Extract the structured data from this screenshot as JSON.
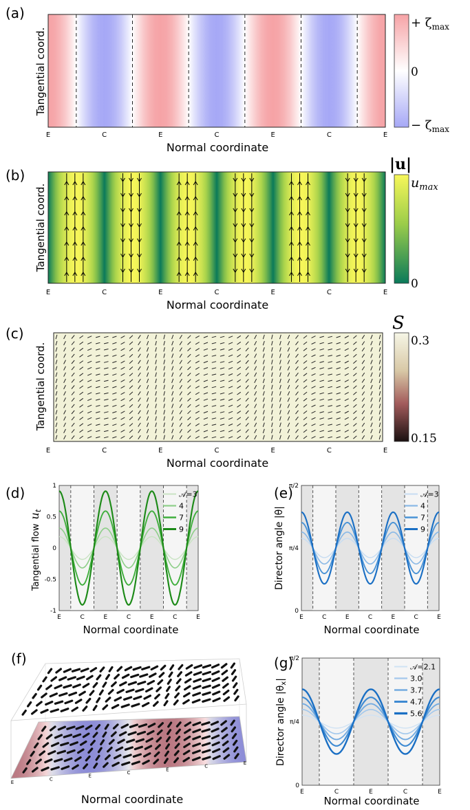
{
  "panels": {
    "a": {
      "label": "(a)",
      "ylabel": "Tangential coord.",
      "xlabel": "Normal coordinate",
      "ticks": [
        "E",
        "C",
        "E",
        "C",
        "E",
        "C",
        "E"
      ],
      "colorbar": {
        "top": "+ ζ",
        "top_sub": "max",
        "mid": "0",
        "bottom": "− ζ",
        "bottom_sub": "max"
      }
    },
    "b": {
      "label": "(b)",
      "ylabel": "Tangential coord.",
      "xlabel": "Normal coordinate",
      "ticks": [
        "E",
        "C",
        "E",
        "C",
        "E",
        "C",
        "E"
      ],
      "colorbar": {
        "title": "|u|",
        "top": "u",
        "top_sub": "max",
        "bottom": "0"
      }
    },
    "c": {
      "label": "(c)",
      "ylabel": "Tangential coord.",
      "xlabel": "Normal coordinate",
      "ticks": [
        "E",
        "C",
        "E",
        "C",
        "E",
        "C",
        "E"
      ],
      "colorbar": {
        "title": "S",
        "top": "0.3",
        "bottom": "0.15"
      }
    },
    "d": {
      "label": "(d)",
      "ylabel": "Tangential flow",
      "ylabel_sym": "u",
      "ylabel_sub": "t",
      "xlabel": "Normal coordinate",
      "xticks": [
        "E",
        "C",
        "E",
        "C",
        "E",
        "C",
        "E"
      ],
      "yticks": [
        "1",
        "0.5",
        "0",
        "-0.5",
        "-1"
      ],
      "legend_title": "𝒜=3",
      "legend": [
        "4",
        "7",
        "9"
      ]
    },
    "e": {
      "label": "(e)",
      "ylabel": "Director angle |θ|",
      "xlabel": "Normal coordinate",
      "xticks": [
        "E",
        "C",
        "E",
        "C",
        "E",
        "C",
        "E"
      ],
      "yticks": [
        "π/2",
        "π/4",
        "0"
      ],
      "legend_title": "𝒜=3",
      "legend": [
        "4",
        "7",
        "9"
      ]
    },
    "f": {
      "label": "(f)",
      "xlabel": "Normal coordinate",
      "ticks": [
        "E",
        "C",
        "E",
        "C",
        "E",
        "C",
        "E"
      ]
    },
    "g": {
      "label": "(g)",
      "ylabel": "Director angle |θ",
      "ylabel_sub": "x",
      "ylabel_end": "|",
      "xlabel": "Normal coordinate",
      "xticks": [
        "E",
        "C",
        "E",
        "C",
        "E"
      ],
      "yticks": [
        "π/2",
        "π/4",
        "0"
      ],
      "legend_title": "𝒜=2.1",
      "legend": [
        "3.0",
        "3.7",
        "4.7",
        "5.6"
      ]
    }
  },
  "chart_data": [
    {
      "type": "heatmap",
      "panel": "a",
      "quantity": "vorticity",
      "pattern": "sinusoidal stripes along normal coordinate",
      "periods": 3,
      "range": [
        "-ζmax",
        "+ζmax"
      ],
      "colors": {
        "positive": "#f6a3a6",
        "negative": "#a6a8f6",
        "zero": "#ffffff"
      }
    },
    {
      "type": "heatmap",
      "panel": "b",
      "quantity": "|u|",
      "periods": 6,
      "range": [
        0,
        "umax"
      ],
      "colors": {
        "low": "#0a7a5a",
        "high": "#f7f75a"
      },
      "arrows": "tangential flow up in first half-period, down in second"
    },
    {
      "type": "heatmap",
      "panel": "c",
      "quantity": "S",
      "range": [
        0.15,
        0.3
      ],
      "background": "#f2f2d8",
      "directors": "line segments with tilt varying along normal coordinate",
      "rows": 17,
      "cols": 40
    },
    {
      "type": "line",
      "panel": "d",
      "xlabel": "Normal coordinate",
      "ylabel": "Tangential flow u_t",
      "ylim": [
        -1,
        1
      ],
      "x_periods": 3,
      "series": [
        {
          "name": "𝒜=3",
          "amplitude": 0.2,
          "color": "#c9e3c3"
        },
        {
          "name": "4",
          "amplitude": 0.35,
          "color": "#8fcf8a"
        },
        {
          "name": "7",
          "amplitude": 0.65,
          "color": "#3fae3c"
        },
        {
          "name": "9",
          "amplitude": 1.0,
          "color": "#1c8a17"
        }
      ]
    },
    {
      "type": "line",
      "panel": "e",
      "xlabel": "Normal coordinate",
      "ylabel": "Director angle |θ|",
      "ylim": [
        0,
        1.5708
      ],
      "x_periods": 3,
      "center": 0.7854,
      "series": [
        {
          "name": "𝒜=3",
          "amplitude": 0.12,
          "color": "#c6dcf2"
        },
        {
          "name": "4",
          "amplitude": 0.2,
          "color": "#8ab9e6"
        },
        {
          "name": "7",
          "amplitude": 0.32,
          "color": "#4a93d6"
        },
        {
          "name": "9",
          "amplitude": 0.45,
          "color": "#1a6fc4"
        }
      ]
    },
    {
      "type": "line",
      "panel": "g",
      "xlabel": "Normal coordinate",
      "ylabel": "Director angle |θx|",
      "ylim": [
        0,
        1.5708
      ],
      "x_periods": 2,
      "center": 0.7854,
      "series": [
        {
          "name": "𝒜=2.1",
          "amplitude": 0.08,
          "color": "#cfe2f4"
        },
        {
          "name": "3.0",
          "amplitude": 0.15,
          "color": "#a3c8ec"
        },
        {
          "name": "3.7",
          "amplitude": 0.22,
          "color": "#74abe0"
        },
        {
          "name": "4.7",
          "amplitude": 0.3,
          "color": "#3e8ad2"
        },
        {
          "name": "5.6",
          "amplitude": 0.4,
          "color": "#1a6fc4"
        }
      ]
    }
  ]
}
